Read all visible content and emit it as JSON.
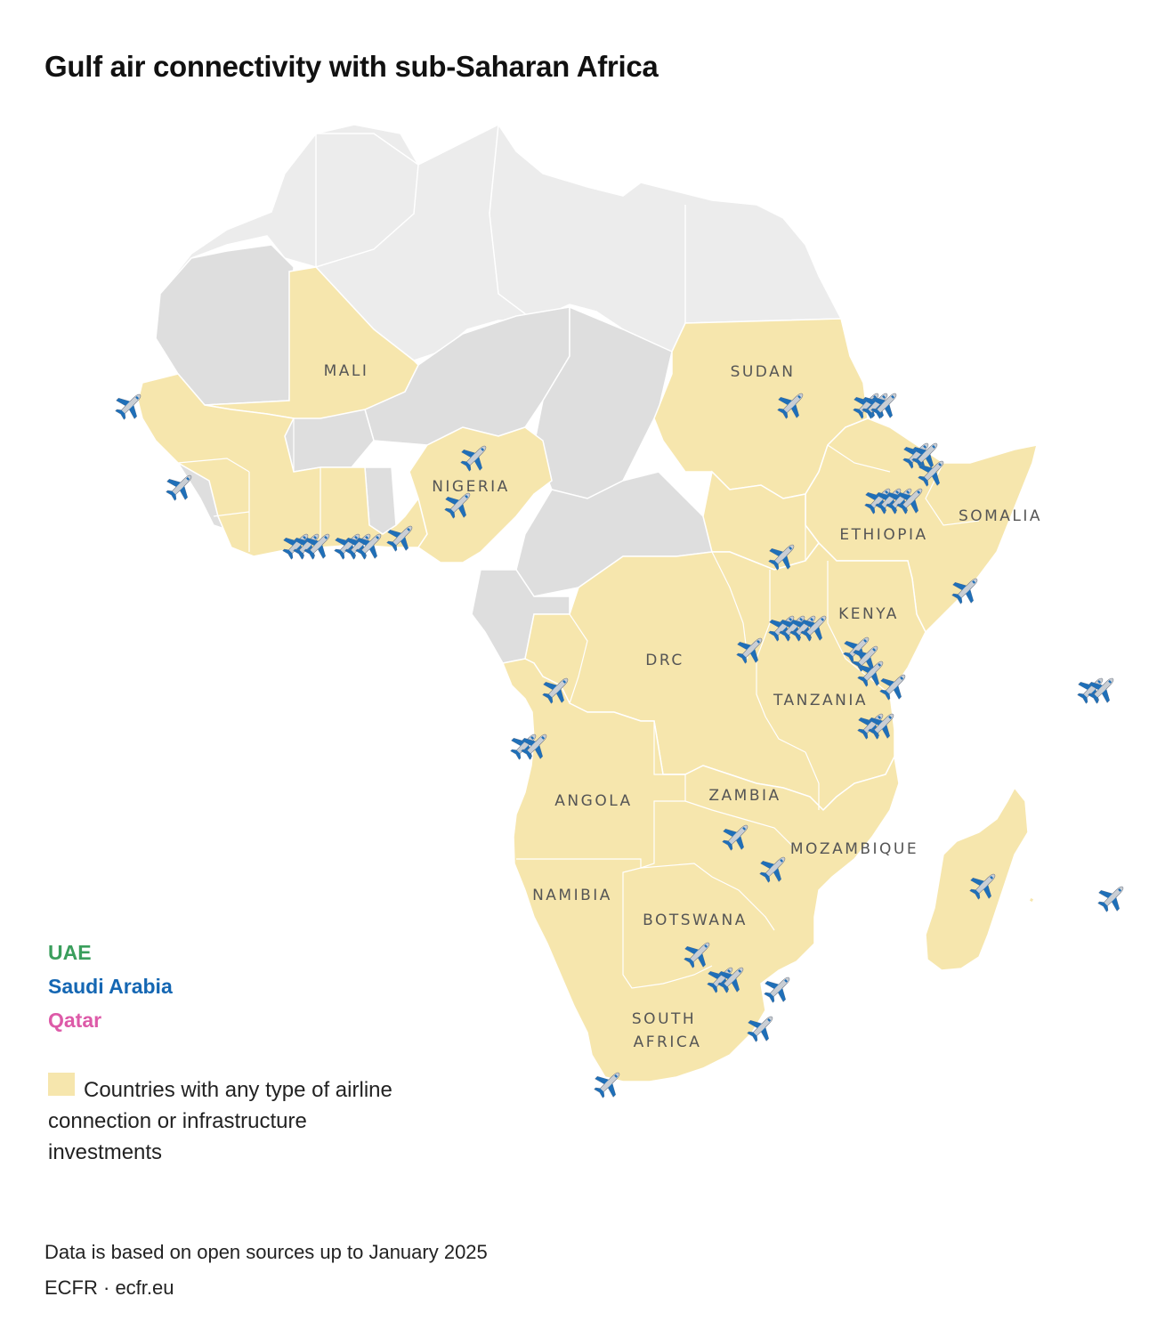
{
  "title": "Gulf air connectivity with sub-Saharan Africa",
  "colors": {
    "highlight": "#f6e6ad",
    "grey_dark": "#dedede",
    "grey_light": "#ececec",
    "uae": "#3a9e5c",
    "saudi_arabia": "#1567b3",
    "qatar": "#dd5aa8",
    "plane_icon": "#1f6fb8"
  },
  "countries": [
    {
      "id": "mali",
      "label": "MALI"
    },
    {
      "id": "sudan",
      "label": "SUDAN"
    },
    {
      "id": "nigeria",
      "label": "NIGERIA"
    },
    {
      "id": "ethiopia",
      "label": "ETHIOPIA"
    },
    {
      "id": "somalia",
      "label": "SOMALIA"
    },
    {
      "id": "kenya",
      "label": "KENYA"
    },
    {
      "id": "drc",
      "label": "DRC"
    },
    {
      "id": "tanzania",
      "label": "TANZANIA"
    },
    {
      "id": "angola",
      "label": "ANGOLA"
    },
    {
      "id": "zambia",
      "label": "ZAMBIA"
    },
    {
      "id": "mozambique",
      "label": "MOZAMBIQUE"
    },
    {
      "id": "namibia",
      "label": "NAMIBIA"
    },
    {
      "id": "botswana",
      "label": "BOTSWANA"
    },
    {
      "id": "south-africa",
      "label": "SOUTH\nAFRICA"
    }
  ],
  "legend": {
    "airlines": [
      {
        "id": "uae",
        "label": "UAE"
      },
      {
        "id": "saudi-arabia",
        "label": "Saudi Arabia"
      },
      {
        "id": "qatar",
        "label": "Qatar"
      }
    ],
    "highlight_label": "Countries with any type of airline connection or infrastructure investments"
  },
  "note": "Data is based on open sources up to January 2025",
  "source": "ECFR · ecfr.eu",
  "plane_icon": "airplane-icon"
}
